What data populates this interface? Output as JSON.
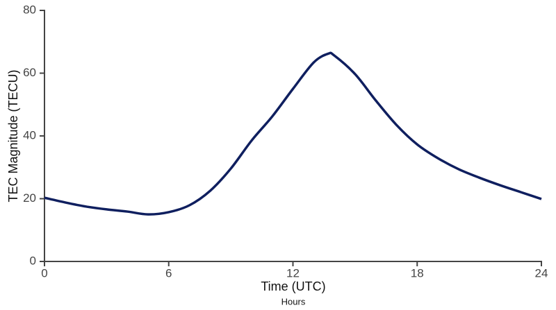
{
  "chart_data": {
    "type": "line",
    "x_label": "Time (UTC)",
    "x_sublabel": "Hours",
    "y_label": "TEC Magnitude (TECU)",
    "x": [
      0,
      1,
      2,
      3,
      4,
      5,
      6,
      7,
      8,
      9,
      10,
      11,
      12,
      13,
      13.7,
      14,
      15,
      16,
      17,
      18,
      19,
      20,
      21,
      22,
      23,
      24
    ],
    "series": [
      {
        "color": "#0f1f5f",
        "values": [
          20.3,
          18.8,
          17.5,
          16.6,
          15.9,
          15.0,
          15.7,
          17.9,
          22.5,
          29.6,
          38.5,
          46.2,
          55.0,
          63.4,
          66.2,
          65.6,
          59.7,
          51.3,
          43.5,
          37.3,
          32.9,
          29.4,
          26.7,
          24.3,
          22.1,
          19.9
        ]
      }
    ],
    "xlim": [
      0,
      24
    ],
    "xticks": [
      0,
      6,
      12,
      18,
      24
    ],
    "ylim": [
      0,
      80
    ],
    "yticks": [
      0,
      20,
      40,
      60,
      80
    ]
  }
}
